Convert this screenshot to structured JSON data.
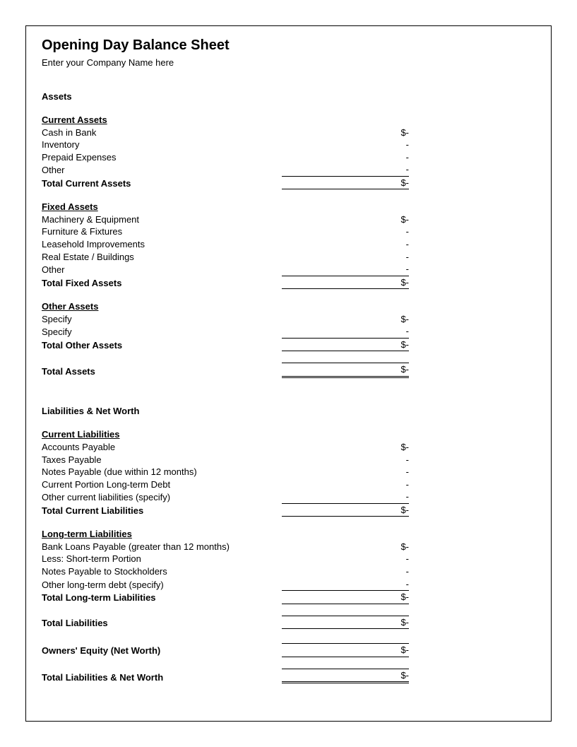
{
  "title": "Opening Day Balance Sheet",
  "company": "Enter your Company Name here",
  "sections": {
    "assets_header": "Assets",
    "current_assets": {
      "header": "Current Assets",
      "items": [
        {
          "label": "Cash in Bank",
          "value": "$-"
        },
        {
          "label": "Inventory",
          "value": "-"
        },
        {
          "label": "Prepaid Expenses",
          "value": "-"
        },
        {
          "label": "Other",
          "value": "-"
        }
      ],
      "total_label": "Total Current Assets",
      "total_value": "$-"
    },
    "fixed_assets": {
      "header": "Fixed Assets",
      "items": [
        {
          "label": "Machinery & Equipment",
          "value": "$-"
        },
        {
          "label": "Furniture & Fixtures",
          "value": "-"
        },
        {
          "label": "Leasehold Improvements",
          "value": "-"
        },
        {
          "label": "Real Estate / Buildings",
          "value": "-"
        },
        {
          "label": "Other",
          "value": "-"
        }
      ],
      "total_label": "Total Fixed Assets",
      "total_value": "$-"
    },
    "other_assets": {
      "header": "Other Assets",
      "items": [
        {
          "label": "Specify",
          "value": "$-"
        },
        {
          "label": "Specify",
          "value": "-"
        }
      ],
      "total_label": "Total Other Assets",
      "total_value": "$-"
    },
    "total_assets_label": "Total Assets",
    "total_assets_value": "$-",
    "liabilities_header": "Liabilities & Net Worth",
    "current_liabilities": {
      "header": "Current Liabilities",
      "items": [
        {
          "label": "Accounts Payable",
          "value": "$-"
        },
        {
          "label": "Taxes Payable",
          "value": "-"
        },
        {
          "label": "Notes Payable (due within 12 months)",
          "value": "-"
        },
        {
          "label": "Current Portion Long-term Debt",
          "value": "-"
        },
        {
          "label": "Other current liabilities (specify)",
          "value": "-"
        }
      ],
      "total_label": "Total Current Liabilities",
      "total_value": "$-"
    },
    "longterm_liabilities": {
      "header": "Long-term Liabilities",
      "items": [
        {
          "label": "Bank Loans Payable (greater than 12 months)",
          "value": "$-"
        },
        {
          "label": "Less: Short-term Portion",
          "value": "-"
        },
        {
          "label": "Notes Payable to Stockholders",
          "value": "-"
        },
        {
          "label": "Other long-term debt (specify)",
          "value": "-"
        }
      ],
      "total_label": "Total Long-term Liabilities",
      "total_value": "$-"
    },
    "total_liabilities_label": "Total Liabilities",
    "total_liabilities_value": "$-",
    "owners_equity_label": "Owners' Equity (Net Worth)",
    "owners_equity_value": "$-",
    "total_lnw_label": "Total Liabilities & Net Worth",
    "total_lnw_value": "$-"
  }
}
